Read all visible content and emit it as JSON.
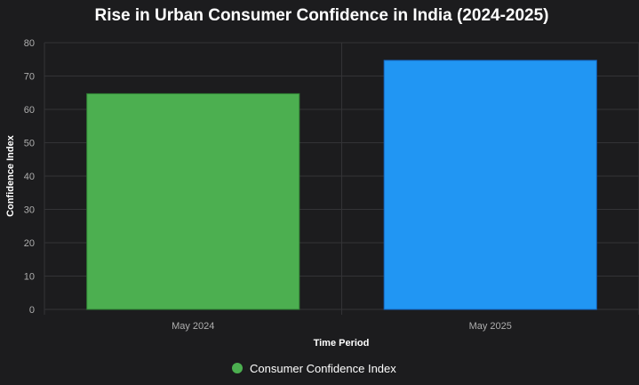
{
  "chart_data": {
    "type": "bar",
    "title": "Rise in Urban Consumer Confidence in India (2024-2025)",
    "xlabel": "Time Period",
    "ylabel": "Confidence Index",
    "categories": [
      "May 2024",
      "May 2025"
    ],
    "series": [
      {
        "name": "Consumer Confidence Index",
        "values": [
          64.7,
          74.7
        ]
      }
    ],
    "bar_colors": [
      "#4caf50",
      "#2196f3"
    ],
    "bar_border_colors": [
      "#2e7d32",
      "#1565c0"
    ],
    "legend_color": "#4caf50",
    "ylim": [
      0,
      80
    ],
    "yticks": [
      "0",
      "10",
      "20",
      "30",
      "40",
      "50",
      "60",
      "70",
      "80"
    ],
    "grid": true,
    "legend_position": "bottom"
  }
}
